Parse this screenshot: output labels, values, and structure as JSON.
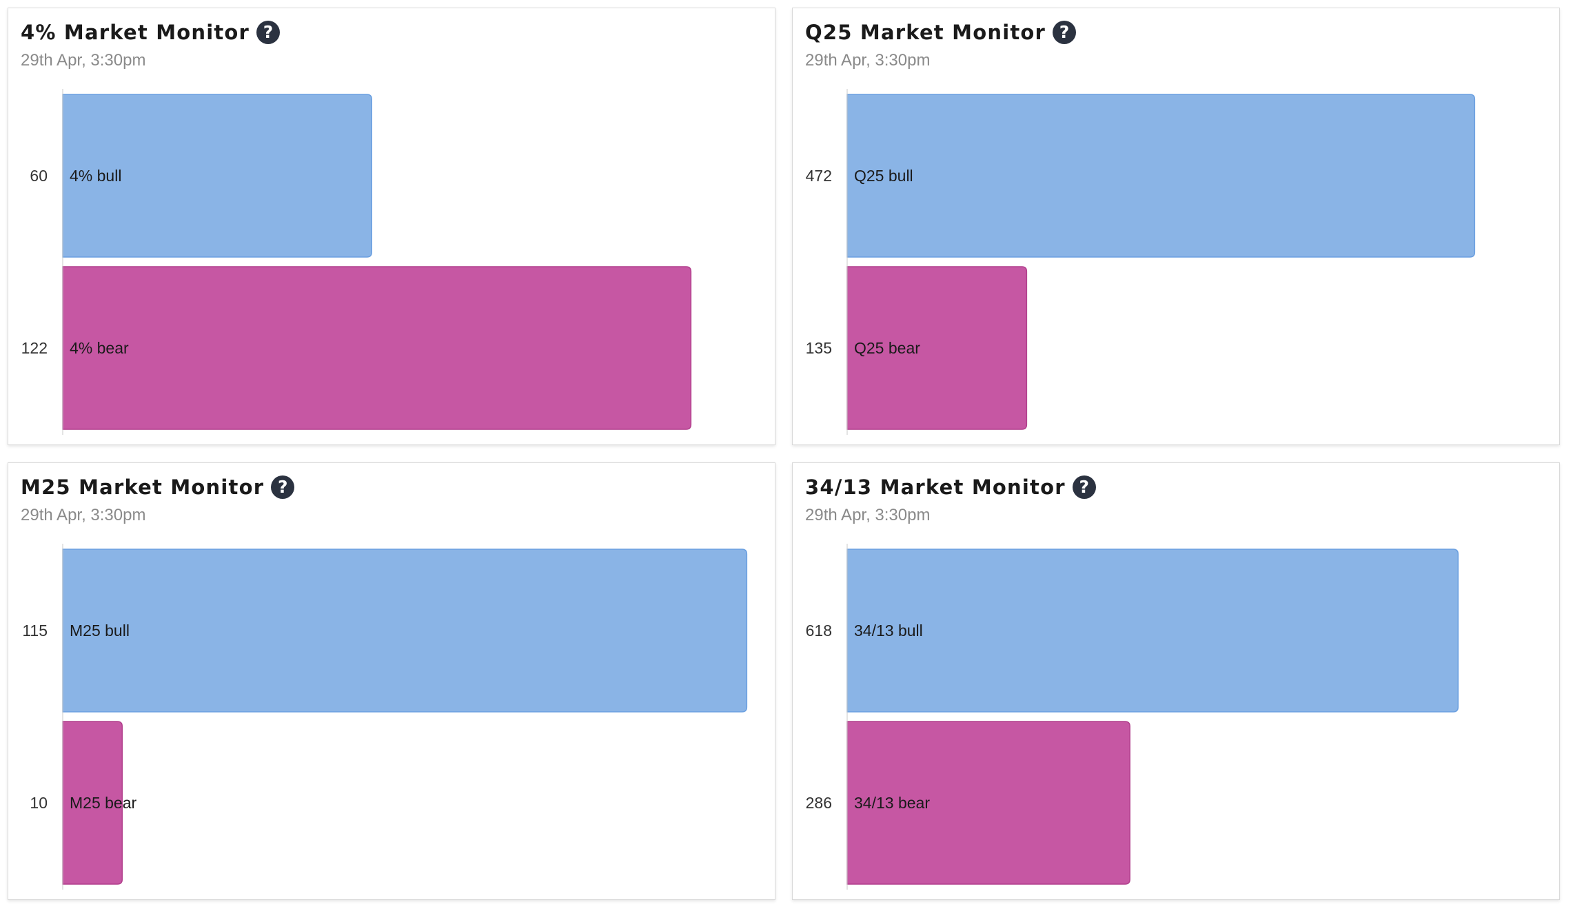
{
  "colors": {
    "bull": "#8ab4e6",
    "bull_stroke": "#6a9fe0",
    "bear": "#c657a3",
    "bear_stroke": "#b13f8c",
    "axis": "#c8c8c8",
    "label_text": "#1a1a1a",
    "tick_text": "#333333",
    "help_icon": "#2b3240"
  },
  "help_icon": {
    "name": "question-circle-icon",
    "glyph": "?"
  },
  "panels": [
    {
      "title": "4% Market Monitor",
      "subtitle": "29th Apr, 3:30pm",
      "chart_data": {
        "type": "bar",
        "orientation": "horizontal",
        "title": "4% Market Monitor",
        "categories": [
          "4% bull",
          "4% bear"
        ],
        "values": [
          60,
          122
        ],
        "xlim": [
          0,
          134
        ],
        "grid": false
      }
    },
    {
      "title": "Q25 Market Monitor",
      "subtitle": "29th Apr, 3:30pm",
      "chart_data": {
        "type": "bar",
        "orientation": "horizontal",
        "title": "Q25 Market Monitor",
        "categories": [
          "Q25 bull",
          "Q25 bear"
        ],
        "values": [
          472,
          135
        ],
        "xlim": [
          0,
          519
        ],
        "grid": false
      }
    },
    {
      "title": "M25 Market Monitor",
      "subtitle": "29th Apr, 3:30pm",
      "chart_data": {
        "type": "bar",
        "orientation": "horizontal",
        "title": "M25 Market Monitor",
        "categories": [
          "M25 bull",
          "M25 bear"
        ],
        "values": [
          115,
          10
        ],
        "xlim": [
          0,
          116
        ],
        "grid": false
      }
    },
    {
      "title": "34/13 Market Monitor",
      "subtitle": "29th Apr, 3:30pm",
      "chart_data": {
        "type": "bar",
        "orientation": "horizontal",
        "title": "34/13 Market Monitor",
        "categories": [
          "34/13 bull",
          "34/13 bear"
        ],
        "values": [
          618,
          286
        ],
        "xlim": [
          0,
          698
        ],
        "grid": false
      }
    }
  ]
}
